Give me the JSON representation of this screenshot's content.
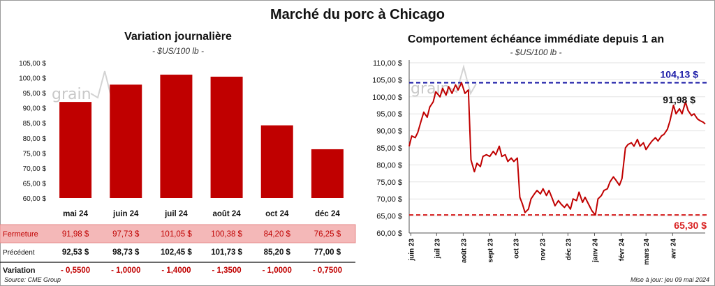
{
  "title": "Marché du porc à Chicago",
  "watermark": "grain",
  "footer": {
    "source": "Source: CME Group",
    "updated": "Mise à jour: jeu 09 mai 2024"
  },
  "chart_data": [
    {
      "type": "bar",
      "title": "Variation journalière",
      "subtitle": "- $US/100 lb -",
      "categories": [
        "mai 24",
        "juin 24",
        "juil 24",
        "août 24",
        "oct 24",
        "déc 24"
      ],
      "values": [
        91.98,
        97.73,
        101.05,
        100.38,
        84.2,
        76.25
      ],
      "ylim": [
        60,
        105
      ],
      "yticks": [
        "60,00 $",
        "65,00 $",
        "70,00 $",
        "75,00 $",
        "80,00 $",
        "85,00 $",
        "90,00 $",
        "95,00 $",
        "100,00 $",
        "105,00 $"
      ],
      "bar_color": "#c00000",
      "table": {
        "rows": [
          {
            "label": "Fermeture",
            "values": [
              "91,98 $",
              "97,73 $",
              "101,05 $",
              "100,38 $",
              "84,20 $",
              "76,25 $"
            ]
          },
          {
            "label": "Précédent",
            "values": [
              "92,53 $",
              "98,73 $",
              "102,45 $",
              "101,73 $",
              "85,20 $",
              "77,00 $"
            ]
          },
          {
            "label": "Variation",
            "values": [
              "- 0,5500",
              "- 1,0000",
              "- 1,4000",
              "- 1,3500",
              "- 1,0000",
              "- 0,7500"
            ]
          }
        ]
      }
    },
    {
      "type": "line",
      "title": "Comportement échéance immédiate depuis 1 an",
      "subtitle": "- $US/100 lb -",
      "ylim": [
        60,
        110
      ],
      "yticks": [
        "60,00 $",
        "65,00 $",
        "70,00 $",
        "75,00 $",
        "80,00 $",
        "85,00 $",
        "90,00 $",
        "95,00 $",
        "100,00 $",
        "105,00 $",
        "110,00 $"
      ],
      "xtick_labels": [
        "juin 23",
        "juil 23",
        "août 23",
        "sept 23",
        "oct 23",
        "nov 23",
        "déc 23",
        "janv 24",
        "févr 24",
        "mars 24",
        "avr 24"
      ],
      "xtick_dates": [
        "2023-06-01",
        "2023-07-01",
        "2023-08-01",
        "2023-09-01",
        "2023-10-01",
        "2023-11-01",
        "2023-12-01",
        "2024-01-01",
        "2024-02-01",
        "2024-03-01",
        "2024-04-01"
      ],
      "x_range": [
        "2023-05-30",
        "2024-05-09"
      ],
      "line_color": "#c00000",
      "x": [
        "2023-05-30",
        "2023-06-02",
        "2023-06-06",
        "2023-06-09",
        "2023-06-13",
        "2023-06-16",
        "2023-06-20",
        "2023-06-23",
        "2023-06-27",
        "2023-06-30",
        "2023-07-05",
        "2023-07-08",
        "2023-07-12",
        "2023-07-15",
        "2023-07-19",
        "2023-07-23",
        "2023-07-26",
        "2023-07-30",
        "2023-08-03",
        "2023-08-07",
        "2023-08-10",
        "2023-08-14",
        "2023-08-17",
        "2023-08-21",
        "2023-08-24",
        "2023-08-28",
        "2023-09-01",
        "2023-09-05",
        "2023-09-08",
        "2023-09-12",
        "2023-09-15",
        "2023-09-19",
        "2023-09-22",
        "2023-09-26",
        "2023-09-29",
        "2023-10-03",
        "2023-10-06",
        "2023-10-09",
        "2023-10-12",
        "2023-10-16",
        "2023-10-19",
        "2023-10-23",
        "2023-10-26",
        "2023-10-30",
        "2023-11-02",
        "2023-11-06",
        "2023-11-09",
        "2023-11-13",
        "2023-11-16",
        "2023-11-20",
        "2023-11-23",
        "2023-11-27",
        "2023-11-30",
        "2023-12-04",
        "2023-12-07",
        "2023-12-11",
        "2023-12-14",
        "2023-12-18",
        "2023-12-21",
        "2023-12-26",
        "2023-12-29",
        "2024-01-02",
        "2024-01-05",
        "2024-01-09",
        "2024-01-12",
        "2024-01-16",
        "2024-01-19",
        "2024-01-23",
        "2024-01-26",
        "2024-01-30",
        "2024-02-02",
        "2024-02-06",
        "2024-02-09",
        "2024-02-13",
        "2024-02-16",
        "2024-02-20",
        "2024-02-23",
        "2024-02-27",
        "2024-03-01",
        "2024-03-05",
        "2024-03-08",
        "2024-03-12",
        "2024-03-15",
        "2024-03-19",
        "2024-03-22",
        "2024-03-26",
        "2024-03-29",
        "2024-04-02",
        "2024-04-05",
        "2024-04-09",
        "2024-04-12",
        "2024-04-16",
        "2024-04-19",
        "2024-04-23",
        "2024-04-26",
        "2024-04-30",
        "2024-05-03",
        "2024-05-07",
        "2024-05-09"
      ],
      "y": [
        85.5,
        88.5,
        88.0,
        89.5,
        93.0,
        95.5,
        94.0,
        97.0,
        98.5,
        101.5,
        100.0,
        102.5,
        100.5,
        103.0,
        101.0,
        103.5,
        102.0,
        104.13,
        101.0,
        102.0,
        81.5,
        78.0,
        80.5,
        79.5,
        82.5,
        83.0,
        82.5,
        84.0,
        83.0,
        85.5,
        82.5,
        83.0,
        81.0,
        82.0,
        81.0,
        82.0,
        70.5,
        68.5,
        66.0,
        67.0,
        70.0,
        71.5,
        72.5,
        71.5,
        73.0,
        71.0,
        72.5,
        70.0,
        68.0,
        69.5,
        68.5,
        67.5,
        68.5,
        67.0,
        70.0,
        69.5,
        72.0,
        69.0,
        70.5,
        68.0,
        66.5,
        65.3,
        70.0,
        71.0,
        72.5,
        73.0,
        75.0,
        76.5,
        75.5,
        74.0,
        76.0,
        85.0,
        86.0,
        86.5,
        85.5,
        87.5,
        85.5,
        86.5,
        84.5,
        86.0,
        87.0,
        88.0,
        87.0,
        88.5,
        89.0,
        90.5,
        93.0,
        97.5,
        95.0,
        96.5,
        95.0,
        98.5,
        96.0,
        94.5,
        95.0,
        93.5,
        93.0,
        92.5,
        91.98
      ],
      "ref_lines": [
        {
          "label": "104,13 $",
          "value": 104.13,
          "color": "#1a1aa6"
        },
        {
          "label": "65,30 $",
          "value": 65.3,
          "color": "#d81e1e"
        }
      ],
      "last_label": "91,98 $"
    }
  ]
}
